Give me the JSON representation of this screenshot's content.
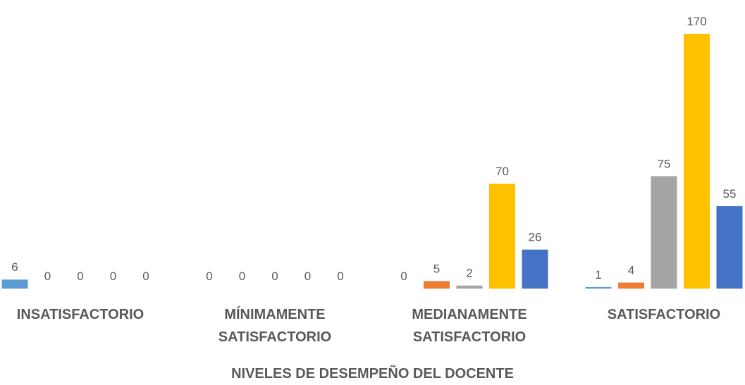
{
  "chart_data": {
    "type": "bar",
    "x_label": "NIVELES DE DESEMPEÑO DEL DOCENTE",
    "categories": [
      "INSATISFACTORIO",
      "MÍNIMAMENTE SATISFACTORIO",
      "MEDIANAMENTE SATISFACTORIO",
      "SATISFACTORIO"
    ],
    "series": [
      {
        "color": "#5b9bd5",
        "values": [
          6,
          0,
          0,
          1
        ]
      },
      {
        "color": "#ed7d31",
        "values": [
          0,
          0,
          5,
          4
        ]
      },
      {
        "color": "#a5a5a5",
        "values": [
          0,
          0,
          2,
          75
        ]
      },
      {
        "color": "#ffc000",
        "values": [
          0,
          0,
          70,
          170
        ]
      },
      {
        "color": "#4472c4",
        "values": [
          0,
          0,
          26,
          55
        ]
      }
    ]
  }
}
